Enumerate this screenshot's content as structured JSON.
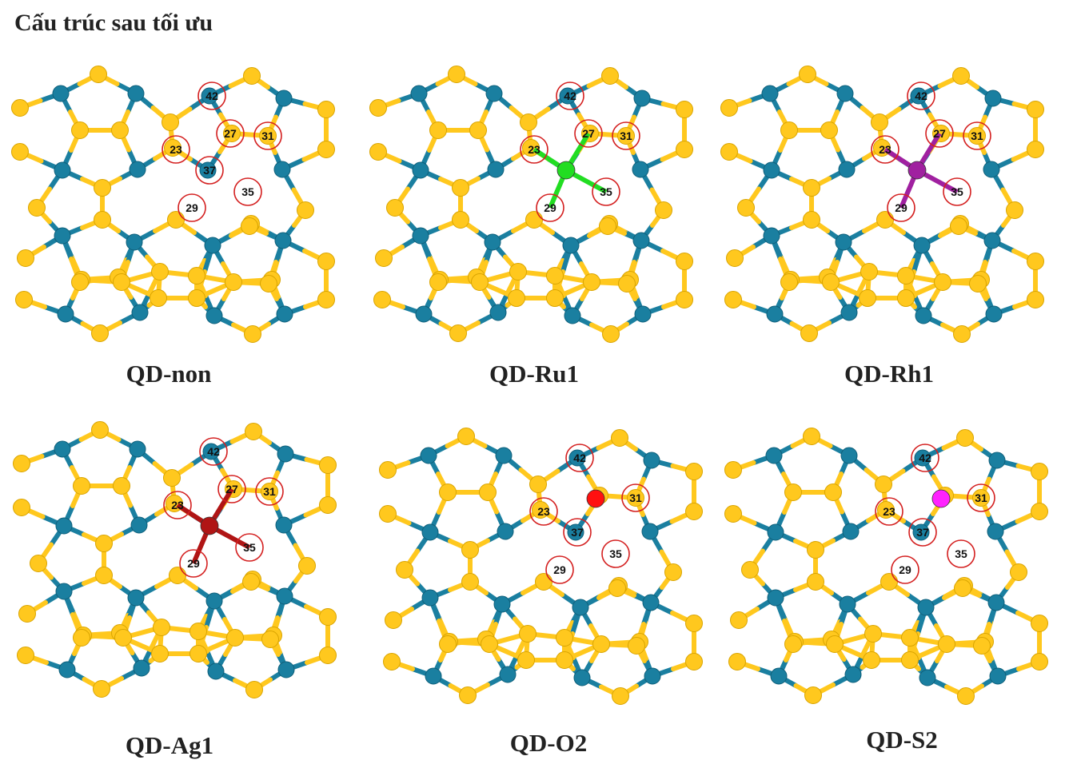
{
  "title": "Cấu trúc sau tối ưu",
  "colors": {
    "sulfur": "#ffc81e",
    "metal": "#1a7fa0",
    "circle": "#d42020",
    "ru_dopant": "#22dd22",
    "rh_dopant": "#a020a0",
    "ag_dopant": "#b01515",
    "o_dopant": "#ff1010",
    "s_dopant": "#ff22ff"
  },
  "panels": [
    {
      "caption": "QD-non",
      "dopant": "none",
      "labels": [
        "42",
        "27",
        "31",
        "23",
        "37",
        "35",
        "29"
      ]
    },
    {
      "caption": "QD-Ru1",
      "dopant": "ru_dopant",
      "labels": [
        "42",
        "27",
        "31",
        "23",
        "35",
        "29"
      ]
    },
    {
      "caption": "QD-Rh1",
      "dopant": "rh_dopant",
      "labels": [
        "42",
        "27",
        "31",
        "23",
        "35",
        "29"
      ]
    },
    {
      "caption": "QD-Ag1",
      "dopant": "ag_dopant",
      "labels": [
        "42",
        "27",
        "31",
        "23",
        "35",
        "29"
      ]
    },
    {
      "caption": "QD-O2",
      "dopant": "o_dopant",
      "labels": [
        "42",
        "31",
        "23",
        "37",
        "35",
        "29"
      ]
    },
    {
      "caption": "QD-S2",
      "dopant": "s_dopant",
      "labels": [
        "42",
        "31",
        "23",
        "37",
        "35",
        "29"
      ]
    }
  ]
}
